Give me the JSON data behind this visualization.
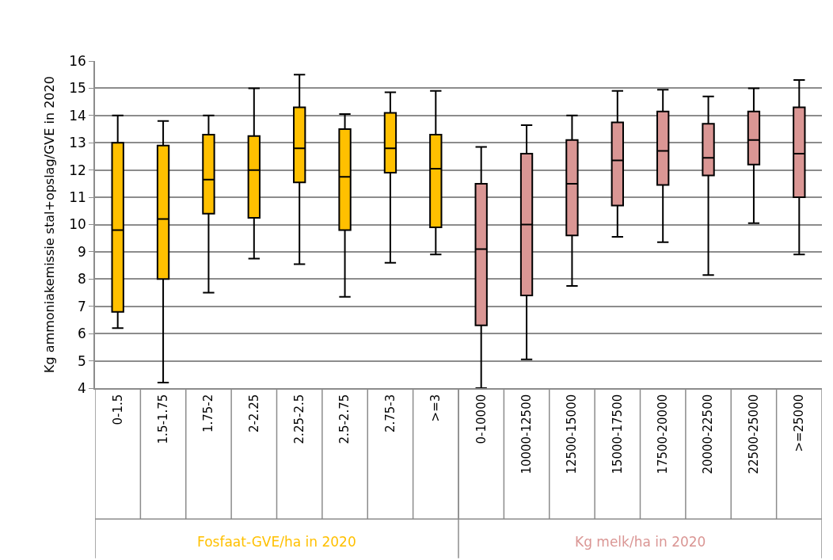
{
  "chart_data": {
    "type": "box",
    "ylabel": "Kg ammoniakemissie stal+opslag/GVE in 2020",
    "categories": [
      "0-1.5",
      "1.5-1.75",
      "1.75-2",
      "2-2.25",
      "2.25-2.5",
      "2.5-2.75",
      "2.75-3",
      ">=3",
      "0-10000",
      "10000-12500",
      "12500-15000",
      "15000-17500",
      "17500-20000",
      "20000-22500",
      "22500-25000",
      ">=25000"
    ],
    "ylim": [
      4,
      16
    ],
    "yticks": [
      4,
      5,
      6,
      7,
      8,
      9,
      10,
      11,
      12,
      13,
      14,
      15,
      16
    ],
    "grid": "y",
    "legend": false,
    "series": [
      {
        "name": "Fosfaat-GVE/ha in 2020",
        "color": "#ffc000",
        "boxes": [
          {
            "low": 6.2,
            "q1": 6.8,
            "median": 9.8,
            "q3": 13.0,
            "high": 14.0
          },
          {
            "low": 4.2,
            "q1": 8.0,
            "median": 10.2,
            "q3": 12.9,
            "high": 13.8
          },
          {
            "low": 7.5,
            "q1": 10.4,
            "median": 11.65,
            "q3": 13.3,
            "high": 14.0
          },
          {
            "low": 8.75,
            "q1": 10.25,
            "median": 12.0,
            "q3": 13.25,
            "high": 15.0
          },
          {
            "low": 8.55,
            "q1": 11.55,
            "median": 12.8,
            "q3": 14.3,
            "high": 15.5
          },
          {
            "low": 7.35,
            "q1": 9.8,
            "median": 11.75,
            "q3": 13.5,
            "high": 14.05
          },
          {
            "low": 8.6,
            "q1": 11.9,
            "median": 12.8,
            "q3": 14.1,
            "high": 14.85
          },
          {
            "low": 8.9,
            "q1": 9.9,
            "median": 12.05,
            "q3": 13.3,
            "high": 14.9
          },
          null,
          null,
          null,
          null,
          null,
          null,
          null,
          null
        ]
      },
      {
        "name": "Kg melk/ha in 2020",
        "color": "#da9694",
        "boxes": [
          null,
          null,
          null,
          null,
          null,
          null,
          null,
          null,
          {
            "low": 4.0,
            "q1": 6.3,
            "median": 9.1,
            "q3": 11.5,
            "high": 12.85
          },
          {
            "low": 5.05,
            "q1": 7.4,
            "median": 10.0,
            "q3": 12.6,
            "high": 13.65
          },
          {
            "low": 7.75,
            "q1": 9.6,
            "median": 11.5,
            "q3": 13.1,
            "high": 14.0
          },
          {
            "low": 9.55,
            "q1": 10.7,
            "median": 12.35,
            "q3": 13.75,
            "high": 14.9
          },
          {
            "low": 9.35,
            "q1": 11.45,
            "median": 12.7,
            "q3": 14.15,
            "high": 14.95
          },
          {
            "low": 8.15,
            "q1": 11.8,
            "median": 12.45,
            "q3": 13.7,
            "high": 14.7
          },
          {
            "low": 10.05,
            "q1": 12.2,
            "median": 13.1,
            "q3": 14.15,
            "high": 15.0
          },
          {
            "low": 8.9,
            "q1": 11.0,
            "median": 12.6,
            "q3": 14.3,
            "high": 15.3
          }
        ]
      }
    ]
  }
}
